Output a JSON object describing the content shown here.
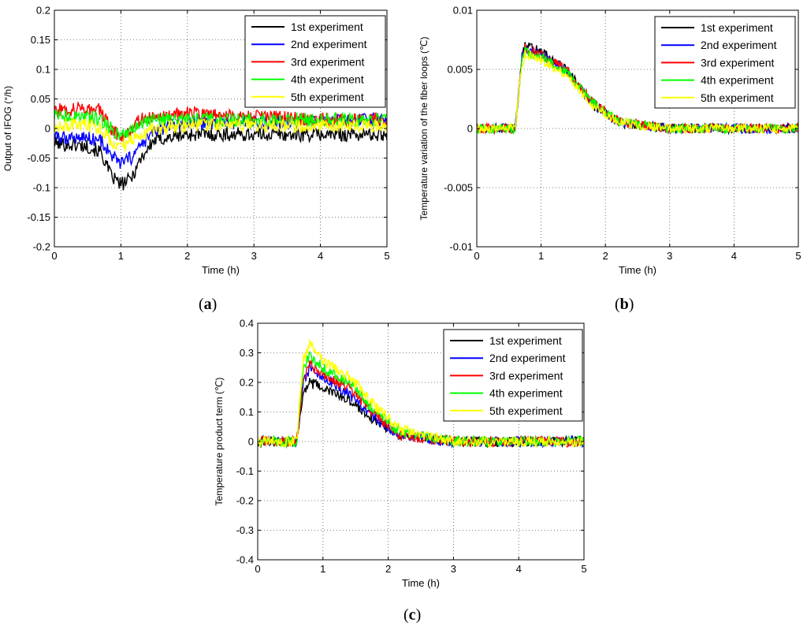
{
  "legend_entries": [
    {
      "label": "1st experiment",
      "color": "#000000"
    },
    {
      "label": "2nd experiment",
      "color": "#0000ff"
    },
    {
      "label": "3rd experiment",
      "color": "#ff0000"
    },
    {
      "label": "4th experiment",
      "color": "#00ff00"
    },
    {
      "label": "5th experiment",
      "color": "#ffff00"
    }
  ],
  "chart_data": [
    {
      "panel": "a",
      "panel_label": "(a)",
      "panel_letter": "a",
      "type": "line",
      "xlabel": "Time (h)",
      "ylabel": "Output of IFOG (°/h)",
      "xlim": [
        0,
        5
      ],
      "ylim": [
        -0.2,
        0.2
      ],
      "xticks": [
        0,
        1,
        2,
        3,
        4,
        5
      ],
      "xtick_labels": [
        "0",
        "1",
        "2",
        "3",
        "4",
        "5"
      ],
      "yticks": [
        -0.2,
        -0.15,
        -0.1,
        -0.05,
        0,
        0.05,
        0.1,
        0.15,
        0.2
      ],
      "ytick_labels": [
        "-0.2",
        "-0.15",
        "-0.1",
        "-0.05",
        "0",
        "0.05",
        "0.1",
        "0.15",
        "0.2"
      ],
      "grid": true,
      "legend_position": "top-right",
      "noise": 0.012,
      "series": [
        {
          "name": "1st experiment",
          "color": "#000000",
          "x": [
            0,
            0.5,
            0.7,
            0.85,
            1.0,
            1.15,
            1.3,
            1.5,
            2.0,
            3.0,
            4.0,
            5.0
          ],
          "y": [
            -0.025,
            -0.03,
            -0.04,
            -0.08,
            -0.095,
            -0.085,
            -0.05,
            -0.02,
            -0.01,
            -0.01,
            -0.01,
            -0.01
          ]
        },
        {
          "name": "2nd experiment",
          "color": "#0000ff",
          "x": [
            0,
            0.5,
            0.7,
            0.85,
            1.0,
            1.15,
            1.3,
            1.5,
            2.0,
            3.0,
            4.0,
            5.0
          ],
          "y": [
            -0.015,
            -0.015,
            -0.02,
            -0.045,
            -0.06,
            -0.05,
            -0.03,
            -0.005,
            0.01,
            0.01,
            0.01,
            0.015
          ]
        },
        {
          "name": "3rd experiment",
          "color": "#ff0000",
          "x": [
            0,
            0.5,
            0.7,
            0.85,
            1.0,
            1.15,
            1.3,
            1.5,
            2.0,
            3.0,
            4.0,
            5.0
          ],
          "y": [
            0.03,
            0.035,
            0.03,
            0.0,
            -0.015,
            0.0,
            0.015,
            0.02,
            0.025,
            0.02,
            0.015,
            0.015
          ]
        },
        {
          "name": "4th experiment",
          "color": "#00ff00",
          "x": [
            0,
            0.5,
            0.7,
            0.85,
            1.0,
            1.15,
            1.3,
            1.5,
            2.0,
            3.0,
            4.0,
            5.0
          ],
          "y": [
            0.02,
            0.02,
            0.015,
            0.0,
            -0.01,
            0.0,
            0.01,
            0.015,
            0.015,
            0.015,
            0.015,
            0.015
          ]
        },
        {
          "name": "5th experiment",
          "color": "#ffff00",
          "x": [
            0,
            0.5,
            0.7,
            0.85,
            1.0,
            1.15,
            1.3,
            1.5,
            2.0,
            3.0,
            4.0,
            5.0
          ],
          "y": [
            0.005,
            0.005,
            0.0,
            -0.02,
            -0.03,
            -0.02,
            -0.01,
            0.0,
            0.005,
            0.005,
            0.005,
            0.005
          ]
        }
      ]
    },
    {
      "panel": "b",
      "panel_label": "(b)",
      "panel_letter": "b",
      "type": "line",
      "xlabel": "Time (h)",
      "ylabel": "Temperature variation of the fiber loops (℃)",
      "xlim": [
        0,
        5
      ],
      "ylim": [
        -0.01,
        0.01
      ],
      "xticks": [
        0,
        1,
        2,
        3,
        4,
        5
      ],
      "xtick_labels": [
        "0",
        "1",
        "2",
        "3",
        "4",
        "5"
      ],
      "yticks": [
        -0.01,
        -0.005,
        0,
        0.005,
        0.01
      ],
      "ytick_labels": [
        "-0.01",
        "-0.005",
        "0",
        "0.005",
        "0.01"
      ],
      "grid": true,
      "legend_position": "top-right",
      "noise": 0.0004,
      "series": [
        {
          "name": "1st experiment",
          "color": "#000000",
          "x": [
            0,
            0.6,
            0.7,
            0.75,
            1.0,
            1.4,
            1.8,
            2.2,
            3.0,
            4.0,
            5.0
          ],
          "y": [
            0,
            0,
            0.006,
            0.007,
            0.0065,
            0.005,
            0.002,
            0.0005,
            0,
            0,
            0
          ]
        },
        {
          "name": "2nd experiment",
          "color": "#0000ff",
          "x": [
            0,
            0.6,
            0.7,
            0.75,
            1.0,
            1.4,
            1.8,
            2.2,
            3.0,
            4.0,
            5.0
          ],
          "y": [
            0,
            0,
            0.006,
            0.0068,
            0.0062,
            0.0048,
            0.002,
            0.0005,
            0,
            0,
            0
          ]
        },
        {
          "name": "3rd experiment",
          "color": "#ff0000",
          "x": [
            0,
            0.6,
            0.7,
            0.75,
            1.0,
            1.4,
            1.8,
            2.2,
            3.0,
            4.0,
            5.0
          ],
          "y": [
            0,
            0,
            0.006,
            0.0068,
            0.0062,
            0.005,
            0.0022,
            0.0006,
            0,
            0,
            0
          ]
        },
        {
          "name": "4th experiment",
          "color": "#00ff00",
          "x": [
            0,
            0.6,
            0.7,
            0.75,
            1.0,
            1.4,
            1.8,
            2.2,
            3.0,
            4.0,
            5.0
          ],
          "y": [
            0,
            0,
            0.0058,
            0.0065,
            0.006,
            0.0048,
            0.0022,
            0.0006,
            0,
            0,
            0
          ]
        },
        {
          "name": "5th experiment",
          "color": "#ffff00",
          "x": [
            0,
            0.6,
            0.7,
            0.75,
            1.0,
            1.4,
            1.8,
            2.2,
            3.0,
            4.0,
            5.0
          ],
          "y": [
            0,
            0,
            0.0055,
            0.0062,
            0.0058,
            0.0045,
            0.002,
            0.0005,
            0,
            0,
            0
          ]
        }
      ]
    },
    {
      "panel": "c",
      "panel_label": "(c)",
      "panel_letter": "c",
      "type": "line",
      "xlabel": "Time (h)",
      "ylabel": "Temperature product term (℃)",
      "xlim": [
        0,
        5
      ],
      "ylim": [
        -0.4,
        0.4
      ],
      "xticks": [
        0,
        1,
        2,
        3,
        4,
        5
      ],
      "xtick_labels": [
        "0",
        "1",
        "2",
        "3",
        "4",
        "5"
      ],
      "yticks": [
        -0.4,
        -0.3,
        -0.2,
        -0.1,
        0,
        0.1,
        0.2,
        0.3,
        0.4
      ],
      "ytick_labels": [
        "-0.4",
        "-0.3",
        "-0.2",
        "-0.1",
        "0",
        "0.1",
        "0.2",
        "0.3",
        "0.4"
      ],
      "grid": true,
      "legend_position": "top-right",
      "noise": 0.018,
      "series": [
        {
          "name": "1st experiment",
          "color": "#000000",
          "x": [
            0,
            0.6,
            0.7,
            0.8,
            1.0,
            1.4,
            1.8,
            2.2,
            3.0,
            4.0,
            5.0
          ],
          "y": [
            0,
            0,
            0.17,
            0.2,
            0.18,
            0.14,
            0.07,
            0.02,
            0,
            0,
            0
          ]
        },
        {
          "name": "2nd experiment",
          "color": "#0000ff",
          "x": [
            0,
            0.6,
            0.7,
            0.8,
            1.0,
            1.4,
            1.8,
            2.2,
            3.0,
            4.0,
            5.0
          ],
          "y": [
            0,
            0,
            0.2,
            0.25,
            0.22,
            0.16,
            0.08,
            0.02,
            0,
            0,
            0
          ]
        },
        {
          "name": "3rd experiment",
          "color": "#ff0000",
          "x": [
            0,
            0.6,
            0.7,
            0.8,
            1.0,
            1.4,
            1.8,
            2.2,
            3.0,
            4.0,
            5.0
          ],
          "y": [
            0,
            0,
            0.22,
            0.26,
            0.23,
            0.18,
            0.09,
            0.02,
            0,
            0,
            0
          ]
        },
        {
          "name": "4th experiment",
          "color": "#00ff00",
          "x": [
            0,
            0.6,
            0.7,
            0.8,
            1.0,
            1.4,
            1.8,
            2.2,
            3.0,
            4.0,
            5.0
          ],
          "y": [
            0,
            0,
            0.25,
            0.29,
            0.25,
            0.2,
            0.1,
            0.03,
            0,
            0,
            0
          ]
        },
        {
          "name": "5th experiment",
          "color": "#ffff00",
          "x": [
            0,
            0.6,
            0.7,
            0.8,
            1.0,
            1.4,
            1.8,
            2.2,
            3.0,
            4.0,
            5.0
          ],
          "y": [
            0,
            0,
            0.28,
            0.33,
            0.27,
            0.22,
            0.12,
            0.04,
            0,
            0,
            0
          ]
        }
      ]
    }
  ]
}
